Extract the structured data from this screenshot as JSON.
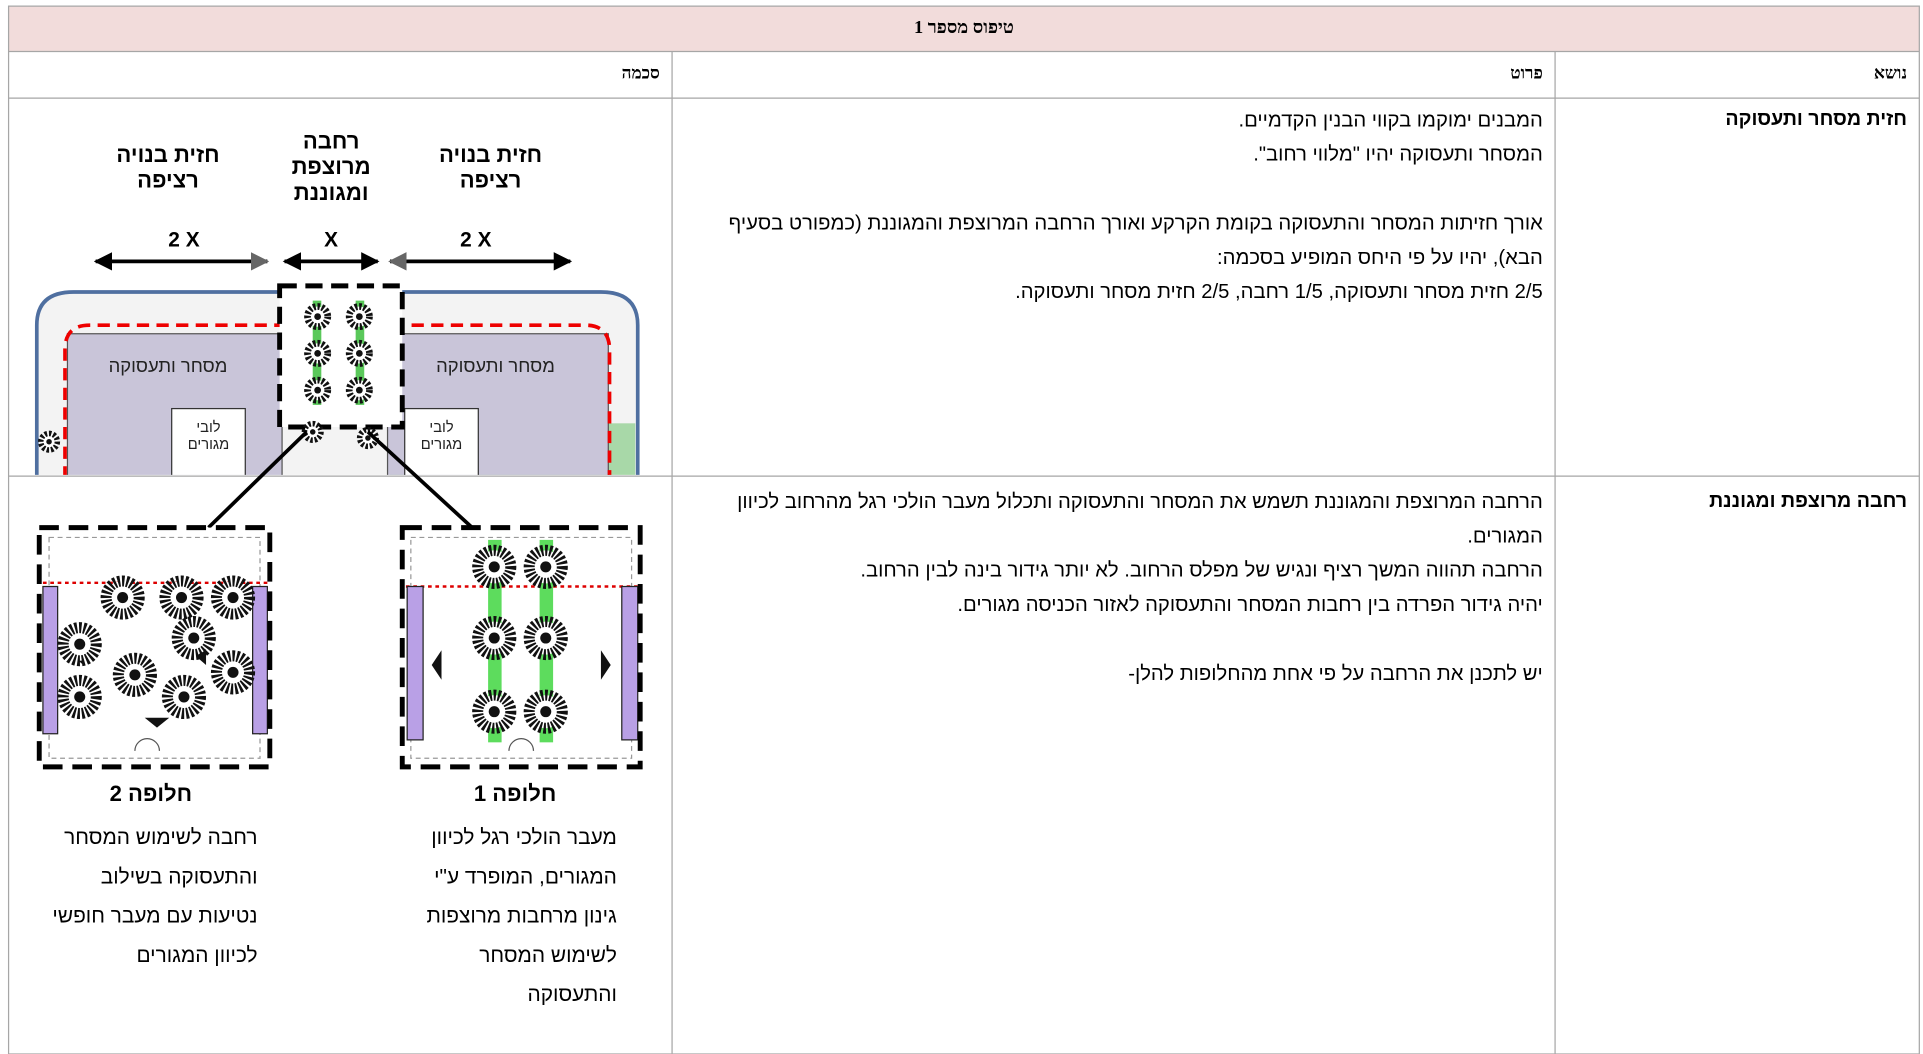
{
  "header": {
    "title": "טיפוס מספר 1"
  },
  "table": {
    "columns": [
      "נושא",
      "פרוט",
      "סכמה"
    ],
    "rows": [
      {
        "subject": "חזית מסחר ותעסוקה",
        "details": [
          "המבנים ימוקמו בקווי הבנין הקדמיים.",
          "המסחר ותעסוקה יהיו \"מלווי רחוב\".",
          "אורך חזיתות המסחר והתעסוקה בקומת הקרקע ואורך הרחבה המרוצפת והמגוננת (כמפורט בסעיף הבא), יהיו על פי היחס המופיע בסכמה:",
          "2/5 חזית מסחר ותעסוקה, 1/5 רחבה, 2/5 חזית מסחר ותעסוקה."
        ]
      },
      {
        "subject": "רחבה מרוצפת ומגוננת",
        "details": [
          "הרחבה המרוצפת והמגוננת תשמש את המסחר והתעסוקה ותכלול מעבר הולכי רגל מהרחוב לכיוון המגורים.",
          "הרחבה תהווה המשך רציף ונגיש של מפלס הרחוב. לא יותר גידור בינה לבין הרחוב.",
          "יהיה גידור הפרדה בין רחבות המסחר והתעסוקה לאזור הכניסה מגורים.",
          "יש לתכנן את הרחבה על פי אחת מהחלופות להלן-"
        ]
      }
    ]
  },
  "schema": {
    "front_labels": [
      "חזית בנויה רציפה",
      "רחבה מרוצפת ומגוננת",
      "חזית בנויה רציפה"
    ],
    "dimensions": [
      "2 X",
      "X",
      "2 X"
    ],
    "plan_labels": [
      "מסחר ותעסוקה",
      "מסחר ותעסוקה",
      "לובי מגורים",
      "לובי מגורים"
    ],
    "alternatives": [
      {
        "title": "חלופה 2",
        "description": "רחבה לשימוש המסחר והתעסוקה בשילוב נטיעות עם מעבר חופשי לכיוון המגורים"
      },
      {
        "title": "חלופה 1",
        "description": "מעבר הולכי רגל לכיוון המגורים, המופרד ע\"י גינון מרחבות מרוצפות לשימוש המסחר והתעסוקה"
      }
    ]
  }
}
